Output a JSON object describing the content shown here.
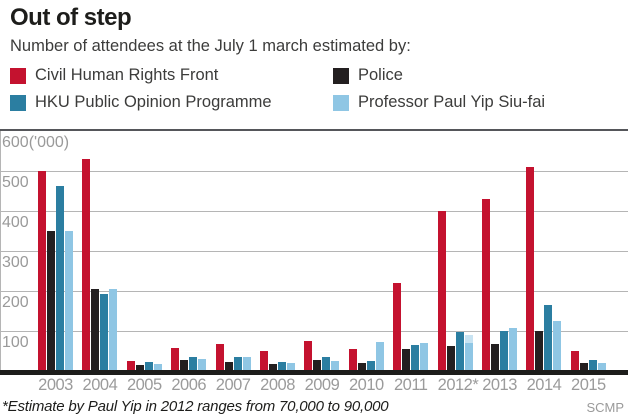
{
  "header": {
    "title": "Out of step",
    "subtitle": "Number of attendees at the July 1 march estimated by:"
  },
  "legend": [
    {
      "label": "Civil Human Rights Front",
      "color": "#c4122f"
    },
    {
      "label": "Police",
      "color": "#231f20"
    },
    {
      "label": "HKU Public Opinion Programme",
      "color": "#2b7ea1"
    },
    {
      "label": "Professor Paul Yip Siu-fai",
      "color": "#8fc6e4"
    }
  ],
  "chart_data": {
    "type": "bar",
    "unit": "thousands ('000)",
    "title": "Out of step",
    "xlabel": "",
    "ylabel": "600('000)",
    "ylim": [
      0,
      600
    ],
    "yticks": [
      100,
      200,
      300,
      400,
      500,
      600
    ],
    "grid": true,
    "legend_position": "top",
    "categories": [
      "2003",
      "2004",
      "2005",
      "2006",
      "2007",
      "2008",
      "2009",
      "2010",
      "2011",
      "2012*",
      "2013",
      "2014",
      "2015"
    ],
    "series": [
      {
        "name": "Civil Human Rights Front",
        "color": "#c4122f",
        "values": [
          500,
          530,
          25,
          58,
          68,
          50,
          76,
          54,
          220,
          400,
          430,
          510,
          50
        ]
      },
      {
        "name": "Police",
        "color": "#231f20",
        "values": [
          350,
          205,
          15,
          28,
          22,
          17,
          28,
          20,
          56,
          63,
          68,
          100,
          20
        ]
      },
      {
        "name": "HKU Public Opinion Programme",
        "color": "#2b7ea1",
        "values": [
          462,
          193,
          22,
          36,
          34,
          23,
          36,
          25,
          64,
          98,
          100,
          166,
          28
        ]
      },
      {
        "name": "Professor Paul Yip Siu-fai",
        "color": "#8fc6e4",
        "values": [
          350,
          205,
          18,
          30,
          36,
          20,
          25,
          72,
          70,
          70,
          108,
          124,
          21
        ]
      }
    ],
    "yip_2012_range": {
      "category": "2012*",
      "from": 70,
      "to": 90,
      "light_color": "#c8e3f2"
    }
  },
  "footer": {
    "note": "*Estimate by Paul Yip in 2012 ranges from 70,000 to 90,000",
    "source": "SCMP"
  }
}
